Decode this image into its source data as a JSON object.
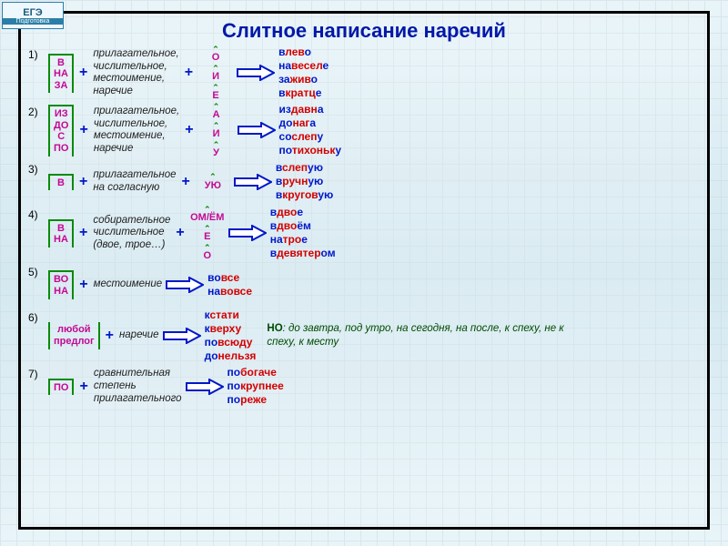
{
  "badge": {
    "line1": "ЕГЭ",
    "line2": "Подготовка"
  },
  "title": "Слитное написание наречий",
  "colors": {
    "title": "#0018a8",
    "prefix_suffix": "#c40893",
    "bracket": "#0a8a0a",
    "plus": "#0018c8",
    "example": "#d40000",
    "example_highlight": "#0018c8",
    "note": "#004a00",
    "arrow_stroke": "#0018c8",
    "frame": "#000000"
  },
  "rows": [
    {
      "n": "1)",
      "prefixes": [
        "В",
        "НА",
        "ЗА"
      ],
      "middle": "прилагательное,\nчислительное,\nместоимение,\nнаречие",
      "suffixes": [
        "О",
        "И",
        "Е"
      ],
      "examples": [
        {
          "pre": "в",
          "mid": "лев",
          "suf": "о"
        },
        {
          "pre": "на",
          "mid": "весел",
          "suf": "е"
        },
        {
          "pre": "за",
          "mid": "жив",
          "suf": "о"
        },
        {
          "pre": "в",
          "mid": "кратц",
          "suf": "е"
        }
      ]
    },
    {
      "n": "2)",
      "prefixes": [
        "ИЗ",
        "ДО",
        "С",
        "ПО"
      ],
      "middle": "прилагательное,\nчислительное,\nместоимение,\nнаречие",
      "suffixes": [
        "А",
        "И",
        "У"
      ],
      "examples": [
        {
          "pre": "из",
          "mid": "давн",
          "suf": "а"
        },
        {
          "pre": "до",
          "mid": "наг",
          "suf": "а"
        },
        {
          "pre": "со",
          "mid": "слеп",
          "suf": "у"
        },
        {
          "pre": "по",
          "mid": "тихоньк",
          "suf": "у"
        }
      ]
    },
    {
      "n": "3)",
      "prefixes": [
        "В"
      ],
      "middle": "прилагательное\nна согласную",
      "suffixes": [
        "УЮ"
      ],
      "examples": [
        {
          "pre": "в",
          "mid": "слеп",
          "suf": "ую"
        },
        {
          "pre": "в",
          "mid": "ручн",
          "suf": "ую"
        },
        {
          "pre": "в",
          "mid": "кругов",
          "suf": "ую"
        }
      ]
    },
    {
      "n": "4)",
      "prefixes": [
        "В",
        "НА"
      ],
      "middle": "собирательное\nчислительное\n(двое, трое…)",
      "suffixes": [
        "ОМ/ЁМ",
        "Е",
        "О"
      ],
      "examples": [
        {
          "pre": "в",
          "mid": "дво",
          "suf": "е"
        },
        {
          "pre": "в",
          "mid": "дво",
          "suf": "ём"
        },
        {
          "pre": "на",
          "mid": "тро",
          "suf": "е"
        },
        {
          "pre": "в",
          "mid": "девятер",
          "suf": "ом"
        }
      ]
    },
    {
      "n": "5)",
      "prefixes": [
        "ВО",
        "НА"
      ],
      "middle": "местоимение",
      "suffixes": [],
      "examples": [
        {
          "pre": "во",
          "mid": "все",
          "suf": ""
        },
        {
          "pre": "на",
          "mid": "вовсе",
          "suf": ""
        }
      ]
    },
    {
      "n": "6)",
      "prefixes_text": "любой\nпредлог",
      "middle": "наречие",
      "suffixes": [],
      "examples": [
        {
          "pre": "к",
          "mid": "стати",
          "suf": ""
        },
        {
          "pre": "к",
          "mid": "верху",
          "suf": ""
        },
        {
          "pre": "по",
          "mid": "всюду",
          "suf": ""
        },
        {
          "pre": "до",
          "mid": "нельзя",
          "suf": ""
        }
      ],
      "note_label": "НО",
      "note": ": до завтра, под утро, на сегодня, на после, к спеху, не к спеху, к месту"
    },
    {
      "n": "7)",
      "prefixes": [
        "ПО"
      ],
      "middle": "сравнительная\nстепень\nприлагательного",
      "suffixes": [],
      "examples": [
        {
          "pre": "по",
          "mid": "богаче",
          "suf": ""
        },
        {
          "pre": "по",
          "mid": "крупнее",
          "suf": ""
        },
        {
          "pre": "по",
          "mid": "реже",
          "suf": ""
        }
      ]
    }
  ]
}
